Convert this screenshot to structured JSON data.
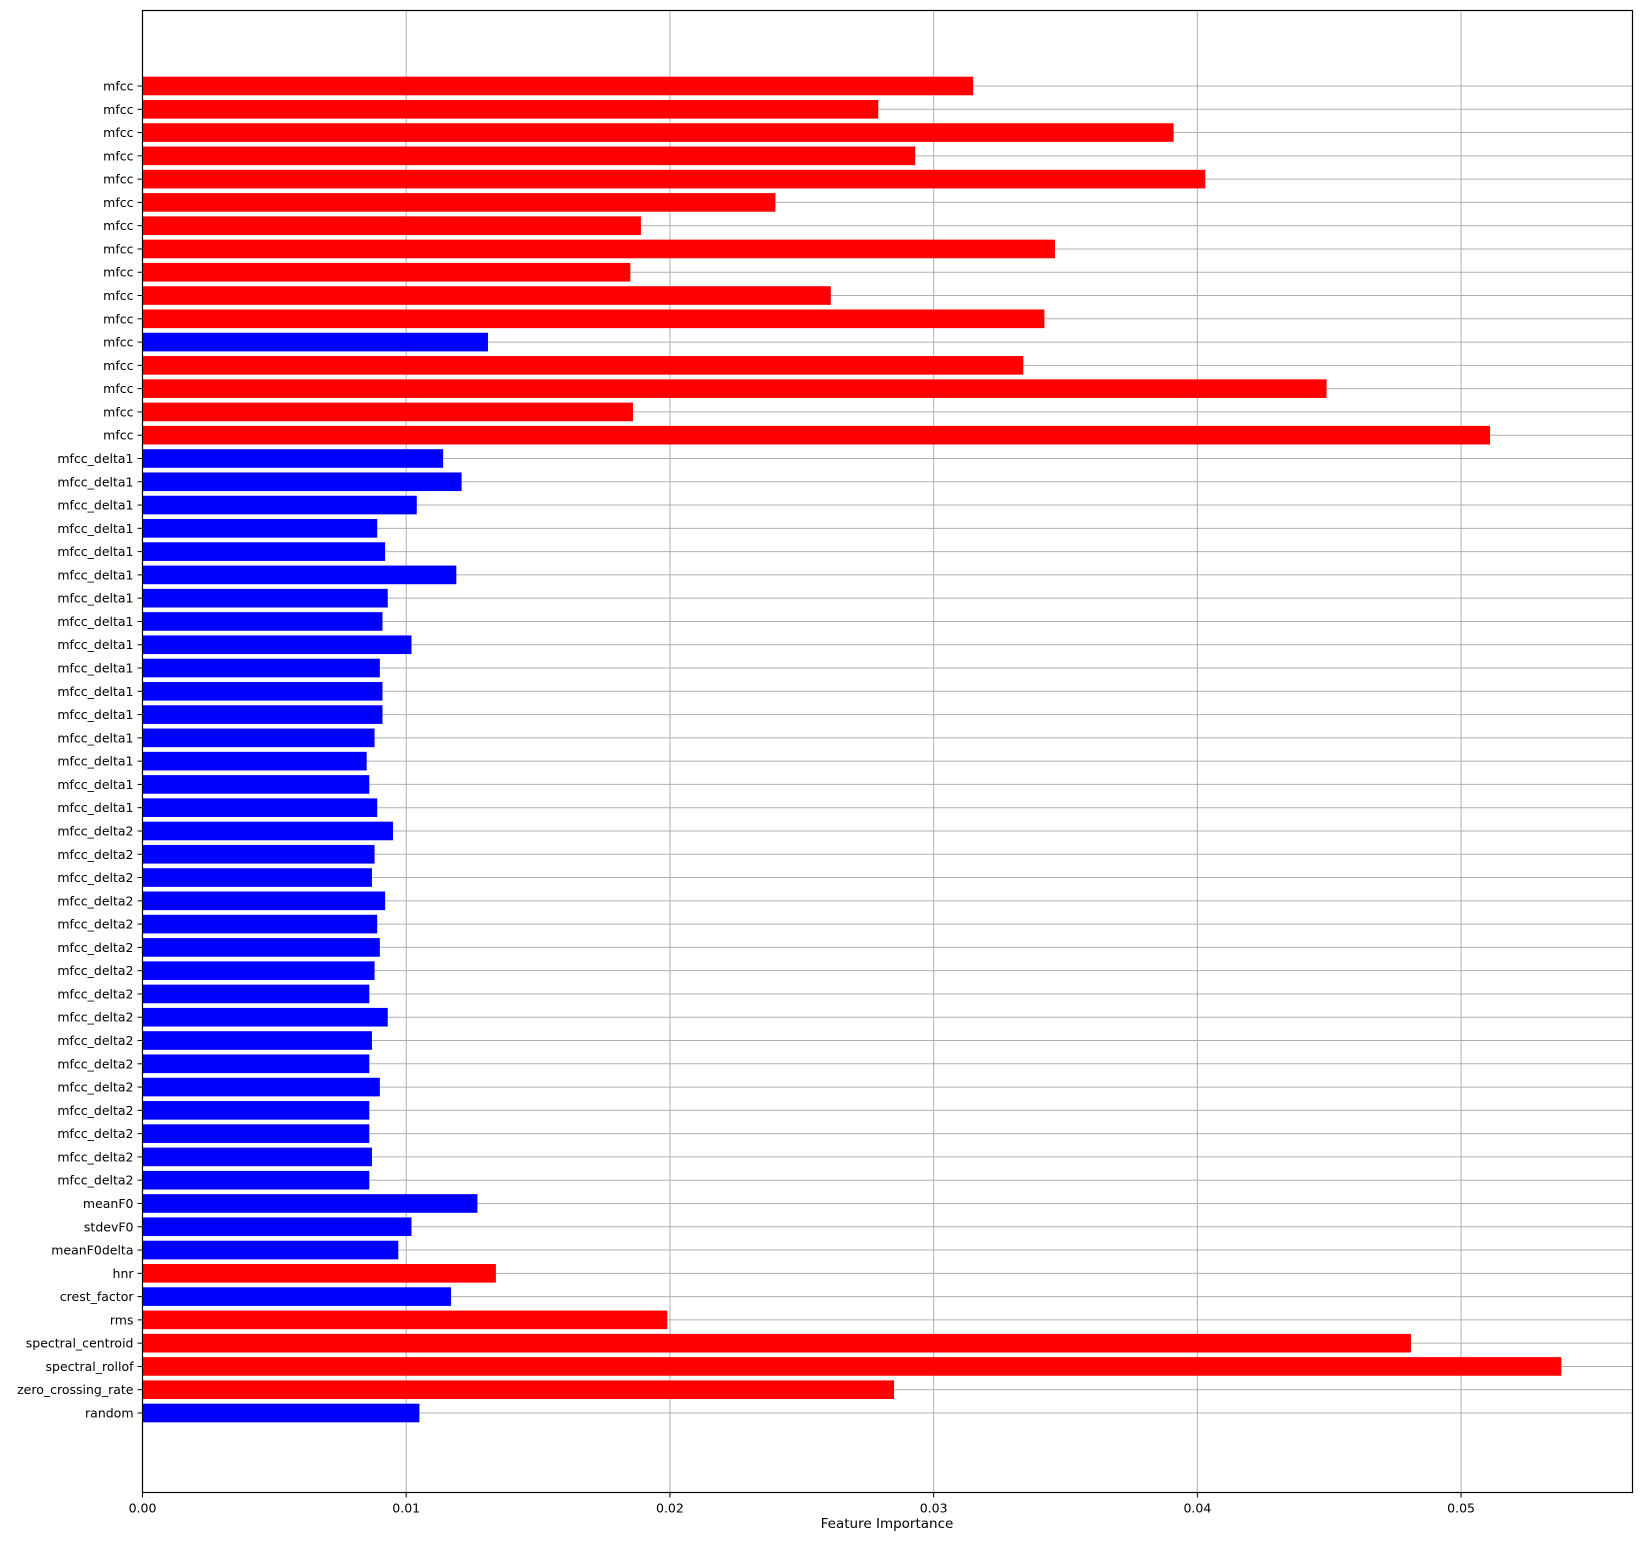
{
  "chart_data": {
    "type": "bar",
    "orientation": "horizontal",
    "xlabel": "Feature Importance",
    "ylabel": "",
    "title": "",
    "xlim": [
      0,
      0.0565
    ],
    "xticks": [
      0.0,
      0.01,
      0.02,
      0.03,
      0.04,
      0.05
    ],
    "xtick_labels": [
      "0.00",
      "0.01",
      "0.02",
      "0.03",
      "0.04",
      "0.05"
    ],
    "grid": true,
    "legend": "none",
    "colors": {
      "red": "#ff0000",
      "blue": "#0000ff"
    },
    "categories": [
      "mfcc",
      "mfcc",
      "mfcc",
      "mfcc",
      "mfcc",
      "mfcc",
      "mfcc",
      "mfcc",
      "mfcc",
      "mfcc",
      "mfcc",
      "mfcc",
      "mfcc",
      "mfcc",
      "mfcc",
      "mfcc",
      "mfcc_delta1",
      "mfcc_delta1",
      "mfcc_delta1",
      "mfcc_delta1",
      "mfcc_delta1",
      "mfcc_delta1",
      "mfcc_delta1",
      "mfcc_delta1",
      "mfcc_delta1",
      "mfcc_delta1",
      "mfcc_delta1",
      "mfcc_delta1",
      "mfcc_delta1",
      "mfcc_delta1",
      "mfcc_delta1",
      "mfcc_delta1",
      "mfcc_delta2",
      "mfcc_delta2",
      "mfcc_delta2",
      "mfcc_delta2",
      "mfcc_delta2",
      "mfcc_delta2",
      "mfcc_delta2",
      "mfcc_delta2",
      "mfcc_delta2",
      "mfcc_delta2",
      "mfcc_delta2",
      "mfcc_delta2",
      "mfcc_delta2",
      "mfcc_delta2",
      "mfcc_delta2",
      "mfcc_delta2",
      "meanF0",
      "stdevF0",
      "meanF0delta",
      "hnr",
      "crest_factor",
      "rms",
      "spectral_centroid",
      "spectral_rollof",
      "zero_crossing_rate",
      "random"
    ],
    "values": [
      0.0315,
      0.0279,
      0.0391,
      0.0293,
      0.0403,
      0.024,
      0.0189,
      0.0346,
      0.0185,
      0.0261,
      0.0342,
      0.0131,
      0.0334,
      0.0449,
      0.0186,
      0.0511,
      0.0114,
      0.0121,
      0.0104,
      0.0089,
      0.0092,
      0.0119,
      0.0093,
      0.0091,
      0.0102,
      0.009,
      0.0091,
      0.0091,
      0.0088,
      0.0085,
      0.0086,
      0.0089,
      0.0095,
      0.0088,
      0.0087,
      0.0092,
      0.0089,
      0.009,
      0.0088,
      0.0086,
      0.0093,
      0.0087,
      0.0086,
      0.009,
      0.0086,
      0.0086,
      0.0087,
      0.0086,
      0.0127,
      0.0102,
      0.0097,
      0.0134,
      0.0117,
      0.0199,
      0.0481,
      0.0538,
      0.0285,
      0.0105
    ],
    "bar_colors": [
      "red",
      "red",
      "red",
      "red",
      "red",
      "red",
      "red",
      "red",
      "red",
      "red",
      "red",
      "blue",
      "red",
      "red",
      "red",
      "red",
      "blue",
      "blue",
      "blue",
      "blue",
      "blue",
      "blue",
      "blue",
      "blue",
      "blue",
      "blue",
      "blue",
      "blue",
      "blue",
      "blue",
      "blue",
      "blue",
      "blue",
      "blue",
      "blue",
      "blue",
      "blue",
      "blue",
      "blue",
      "blue",
      "blue",
      "blue",
      "blue",
      "blue",
      "blue",
      "blue",
      "blue",
      "blue",
      "blue",
      "blue",
      "blue",
      "red",
      "blue",
      "red",
      "red",
      "red",
      "red",
      "blue"
    ]
  }
}
